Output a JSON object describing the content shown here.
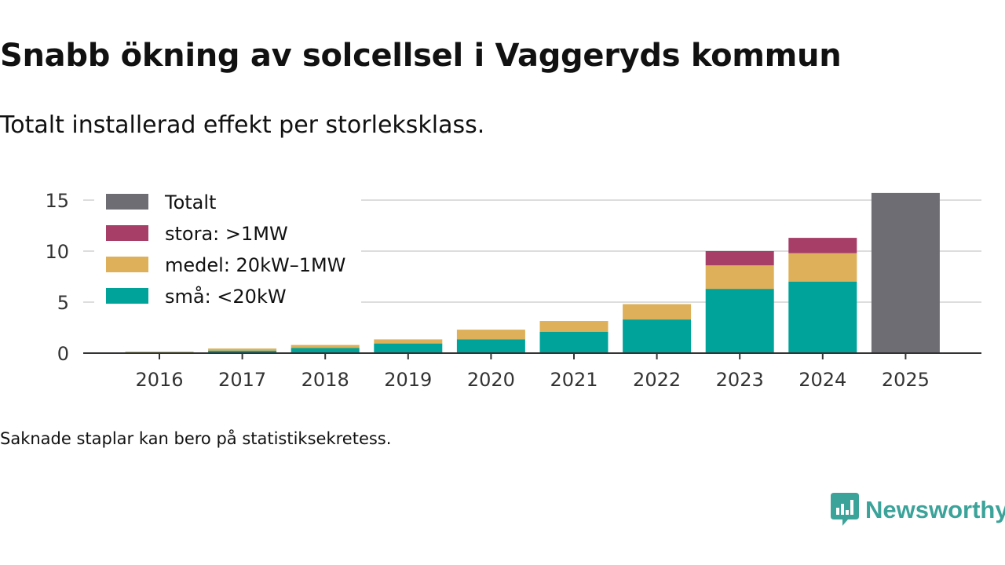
{
  "header": {
    "title": "Snabb ökning av solcellsel i Vaggeryds kommun",
    "subtitle": "Totalt installerad effekt per storleksklass."
  },
  "footer": {
    "note": "Saknade staplar kan bero på statistiksekretess.",
    "brand": "Newsworthy"
  },
  "colors": {
    "total": "#6e6d73",
    "stora": "#a63e68",
    "medel": "#ddb059",
    "sma": "#00a39a",
    "grid": "#dddddd",
    "axis": "#333333",
    "brand": "#3ca39a"
  },
  "chart_data": {
    "type": "bar",
    "stacked": true,
    "title": "Snabb ökning av solcellsel i Vaggeryds kommun",
    "subtitle": "Totalt installerad effekt per storleksklass.",
    "xlabel": "",
    "ylabel": "",
    "ylim": [
      0,
      16
    ],
    "yticks": [
      0,
      5,
      10,
      15
    ],
    "grid": true,
    "legend_position": "top-left",
    "categories": [
      "2016",
      "2017",
      "2018",
      "2019",
      "2020",
      "2021",
      "2022",
      "2023",
      "2024",
      "2025"
    ],
    "series": [
      {
        "name": "små: <20kW",
        "key": "sma",
        "values": [
          0.1,
          0.25,
          0.5,
          0.95,
          1.35,
          2.1,
          3.3,
          6.3,
          7.0,
          null
        ]
      },
      {
        "name": "medel: 20kW–1MW",
        "key": "medel",
        "values": [
          0.05,
          0.2,
          0.3,
          0.4,
          0.95,
          1.05,
          1.5,
          2.3,
          2.8,
          null
        ]
      },
      {
        "name": "stora: >1MW",
        "key": "stora",
        "values": [
          null,
          null,
          null,
          null,
          null,
          null,
          null,
          1.4,
          1.5,
          null
        ]
      },
      {
        "name": "Totalt",
        "key": "total",
        "values": [
          null,
          null,
          null,
          null,
          null,
          null,
          null,
          null,
          null,
          15.7
        ]
      }
    ],
    "legend": [
      {
        "label": "Totalt",
        "key": "total"
      },
      {
        "label": "stora: >1MW",
        "key": "stora"
      },
      {
        "label": "medel: 20kW–1MW",
        "key": "medel"
      },
      {
        "label": "små: <20kW",
        "key": "sma"
      }
    ]
  }
}
